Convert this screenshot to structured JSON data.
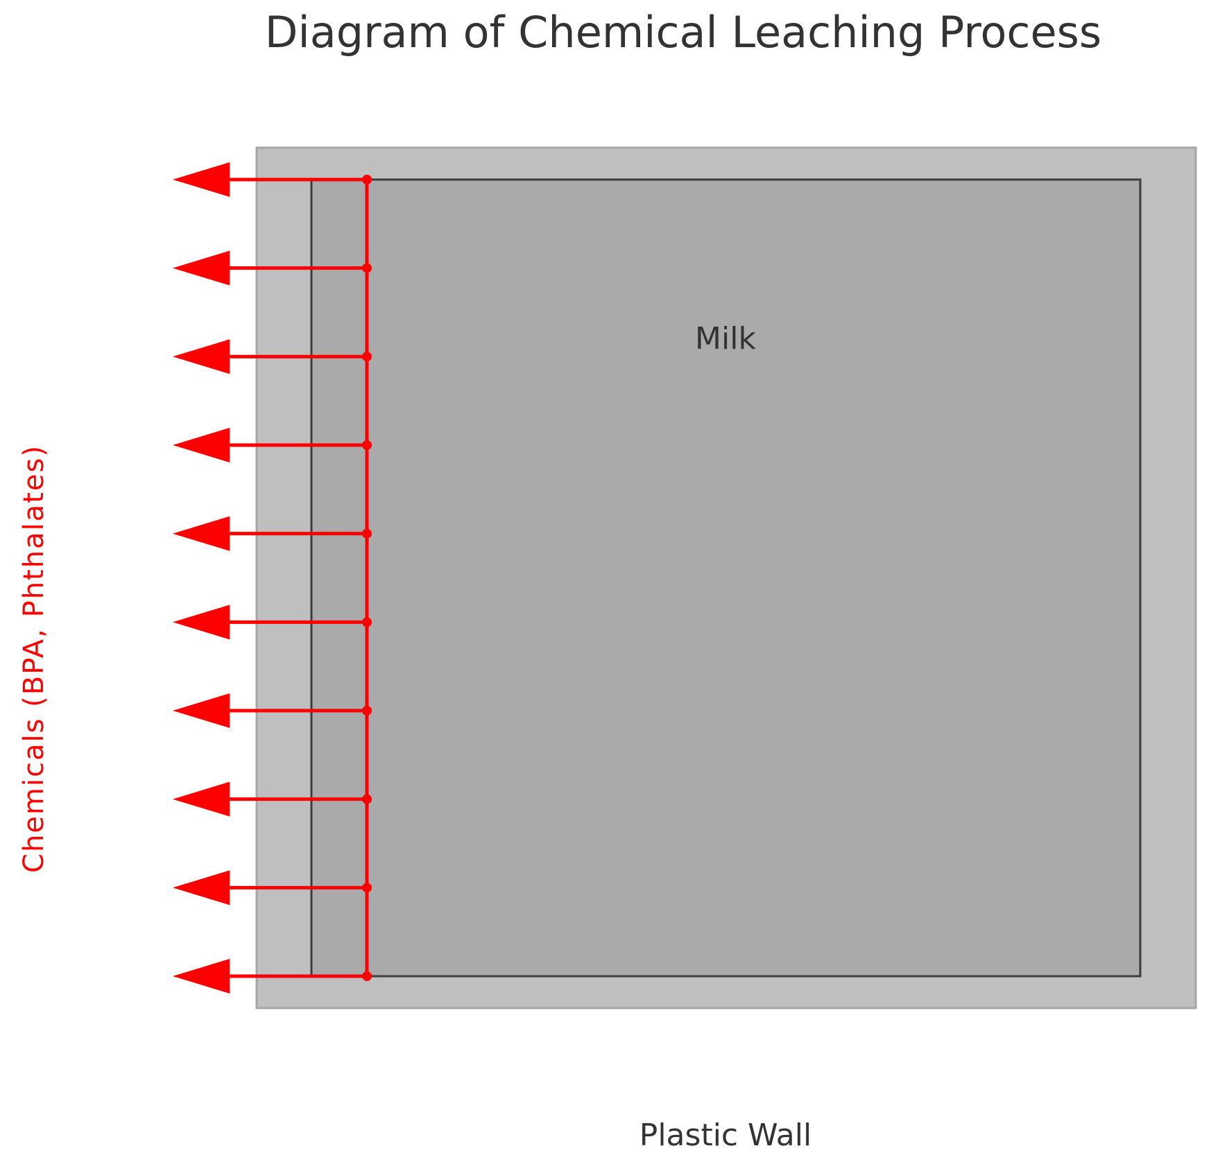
{
  "title": "Diagram of Chemical Leaching Process",
  "container": {
    "inner_label": "Milk",
    "wall_label": "Plastic Wall"
  },
  "leaching": {
    "label": "Chemicals (BPA, Phthalates)",
    "arrow_count": 10
  },
  "colors": {
    "plastic_wall": "#bfbfbf",
    "plastic_wall_edge": "#a6a6a6",
    "milk": "#aaaaaa",
    "outline": "#3c3c3c",
    "arrow": "#ff0000",
    "text": "#333333"
  }
}
